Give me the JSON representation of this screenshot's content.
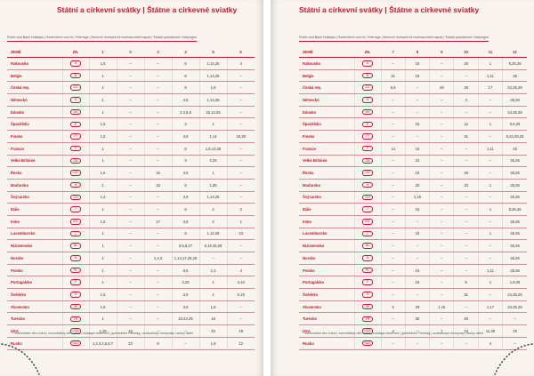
{
  "left": {
    "title": "Státní a církevní svátky | Štátne a cirkevné sviatky",
    "subtitle": "Public and Bank Holidays | Gesetzliche und rel. Feiertage | Nemzeti ünnepek és munkaszüneti napok | Święta państwowe i tradycyjne",
    "header": [
      "ZEMĚ",
      "ZN.",
      1,
      2,
      3,
      4,
      5,
      6
    ],
    "footnote": "* volno/státní den volna | volno/štátny deň voľna | holidays observed | gesetzliche Feiertag | szabadnapi ünnepnap | wolny dzień"
  },
  "right": {
    "title": "Státní a církevní svátky | Štátne a cirkevné sviatky",
    "subtitle": "Public and Bank Holidays | Gesetzliche und rel. Feiertage | Nemzeti ünnepek és munkaszüneti napok | Święta państwowe i tradycyjne",
    "header": [
      "ZEMĚ",
      "ZN.",
      7,
      8,
      9,
      10,
      11,
      12
    ],
    "footnote": "* volno/státní den volna | volno/štátny deň voľna | holidays observed | gesetzliche Feiertag | szabadnapi ünnepnap | wolny dzień"
  },
  "rows": [
    {
      "country": "Rakousko",
      "code": "A",
      "left": [
        "1,6",
        "–",
        "–",
        "6",
        "1,14,25",
        "4"
      ],
      "right": [
        "–",
        "15",
        "–",
        "26",
        "1",
        "8,25,26"
      ]
    },
    {
      "country": "Belgie",
      "code": "B",
      "left": [
        "1",
        "–",
        "–",
        "6",
        "1,14,25",
        "–"
      ],
      "right": [
        "21",
        "15",
        "–",
        "–",
        "1,11",
        "25"
      ]
    },
    {
      "country": "Česká rep.",
      "code": "CZ",
      "left": [
        "1",
        "–",
        "–",
        "6",
        "1,8",
        "–"
      ],
      "right": [
        "5,6",
        "–",
        "28",
        "28",
        "17",
        "24,25,26"
      ]
    },
    {
      "country": "Německo",
      "code": "D",
      "left": [
        "1",
        "–",
        "–",
        "3,6",
        "1,14,25",
        "–"
      ],
      "right": [
        "–",
        "–",
        "–",
        "3",
        "–",
        "25,26"
      ]
    },
    {
      "country": "Dánsko",
      "code": "DK",
      "left": [
        "1",
        "–",
        "–",
        "2,3,5,6",
        "15,14,25",
        "–"
      ],
      "right": [
        "–",
        "–",
        "–",
        "–",
        "–",
        "24,25,26"
      ]
    },
    {
      "country": "Španělsko",
      "code": "E",
      "left": [
        "1,6",
        "–",
        "–",
        "3",
        "1",
        "–"
      ],
      "right": [
        "–",
        "15",
        "–",
        "12",
        "1",
        "6,8,25"
      ]
    },
    {
      "country": "Finsko",
      "code": "FI",
      "left": [
        "1,6",
        "–",
        "–",
        "3,6",
        "1,14",
        "19,20"
      ],
      "right": [
        "–",
        "–",
        "–",
        "31",
        "–",
        "6,24,25,26"
      ]
    },
    {
      "country": "Francie",
      "code": "F",
      "left": [
        "1",
        "–",
        "–",
        "6",
        "1,8,14,25",
        "–"
      ],
      "right": [
        "14",
        "15",
        "–",
        "–",
        "1,11",
        "25"
      ]
    },
    {
      "country": "Velká Británie",
      "code": "GB",
      "left": [
        "1",
        "–",
        "–",
        "3",
        "4,25",
        "–"
      ],
      "right": [
        "–",
        "31",
        "–",
        "–",
        "–",
        "25,26"
      ]
    },
    {
      "country": "Řecko",
      "code": "GR",
      "left": [
        "1,6",
        "–",
        "15",
        "3,6",
        "1",
        "–"
      ],
      "right": [
        "–",
        "15",
        "–",
        "28",
        "–",
        "25,26"
      ]
    },
    {
      "country": "Maďarsko",
      "code": "H",
      "left": [
        "1",
        "–",
        "15",
        "6",
        "1,25",
        "–"
      ],
      "right": [
        "–",
        "20",
        "–",
        "23",
        "1",
        "25,26"
      ]
    },
    {
      "country": "Švýcarsko",
      "code": "CH",
      "left": [
        "1,2",
        "–",
        "–",
        "3,6",
        "1,14,25",
        "–"
      ],
      "right": [
        "–",
        "1,15",
        "–",
        "–",
        "–",
        "25,26"
      ]
    },
    {
      "country": "Itálie",
      "code": "I",
      "left": [
        "1",
        "–",
        "–",
        "6",
        "4",
        "2"
      ],
      "right": [
        "–",
        "15",
        "–",
        "–",
        "1",
        "8,25,26"
      ]
    },
    {
      "country": "Irsko",
      "code": "IRL",
      "left": [
        "1,6",
        "–",
        "17",
        "3,6",
        "4",
        "1"
      ],
      "right": [
        "–",
        "–",
        "–",
        "–",
        "–",
        "25,26"
      ]
    },
    {
      "country": "Lucembursko",
      "code": "L",
      "left": [
        "1",
        "–",
        "–",
        "6",
        "1,14,25",
        "23"
      ],
      "right": [
        "–",
        "15",
        "–",
        "–",
        "1",
        "25,26"
      ]
    },
    {
      "country": "Nizozemsko",
      "code": "NL",
      "left": [
        "1",
        "–",
        "–",
        "3,5,6,27",
        "5,14,25,26",
        "–"
      ],
      "right": [
        "–",
        "–",
        "–",
        "–",
        "–",
        "25,26"
      ]
    },
    {
      "country": "Norsko",
      "code": "N",
      "left": [
        "1",
        "–",
        "1,2,3",
        "1,14,17,25,26",
        "–",
        "–"
      ],
      "right": [
        "–",
        "–",
        "–",
        "–",
        "–",
        "25,26"
      ]
    },
    {
      "country": "Polsko",
      "code": "PL",
      "left": [
        "1",
        "–",
        "–",
        "5,6",
        "1,3",
        "4"
      ],
      "right": [
        "–",
        "15",
        "–",
        "–",
        "1,11",
        "25,26"
      ]
    },
    {
      "country": "Portugalsko",
      "code": "P",
      "left": [
        "1",
        "–",
        "–",
        "3,25",
        "1",
        "4,10"
      ],
      "right": [
        "–",
        "15",
        "–",
        "5",
        "1",
        "1,8,25"
      ]
    },
    {
      "country": "Švédsko",
      "code": "S",
      "left": [
        "1,6",
        "–",
        "–",
        "3,6",
        "1",
        "6,19"
      ],
      "right": [
        "–",
        "–",
        "–",
        "31",
        "–",
        "24,25,26"
      ]
    },
    {
      "country": "Slovensko",
      "code": "SK",
      "left": [
        "1,6",
        "–",
        "–",
        "3,6",
        "1,8",
        "–"
      ],
      "right": [
        "5",
        "29",
        "1,15",
        "–",
        "1,17",
        "24,25,26"
      ]
    },
    {
      "country": "Turecko",
      "code": "TR",
      "left": [
        "1",
        "–",
        "–",
        "23,24,25",
        "19",
        "–"
      ],
      "right": [
        "–",
        "30",
        "–",
        "29",
        "–",
        "–"
      ]
    },
    {
      "country": "USA",
      "code": "USA",
      "left": [
        "1,19",
        "16",
        "–",
        "–",
        "25",
        "19"
      ],
      "right": [
        "4",
        "–",
        "7",
        "13",
        "11,28",
        "25"
      ]
    },
    {
      "country": "Rusko",
      "code": "RUS",
      "left": [
        "1,2,3,4,5,6,7",
        "23",
        "8",
        "–",
        "1,9",
        "12"
      ],
      "right": [
        "–",
        "–",
        "–",
        "–",
        "4",
        "–"
      ]
    }
  ]
}
